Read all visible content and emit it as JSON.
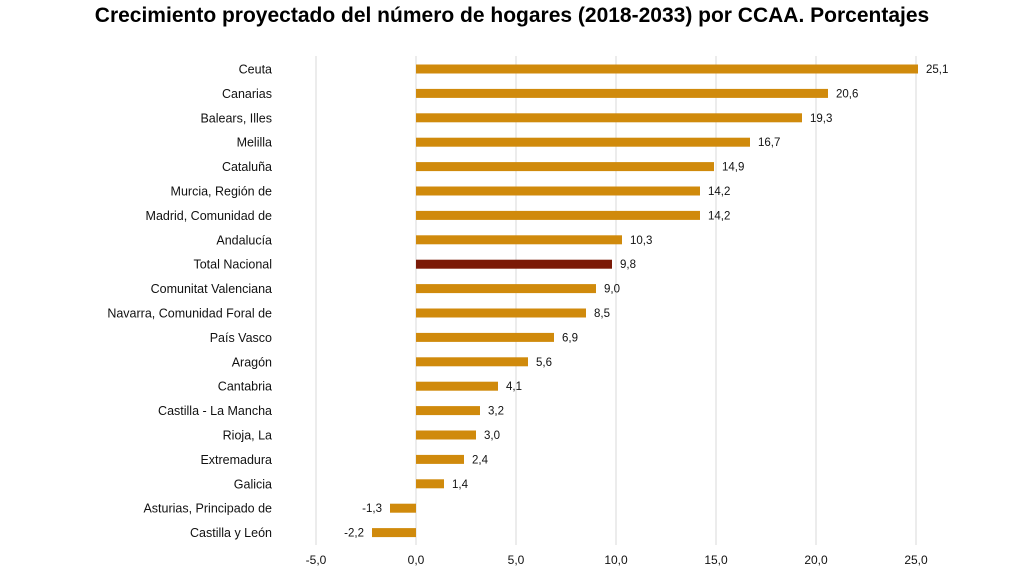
{
  "title": "Crecimiento proyectado del número de hogares (2018-2033) por CCAA. Porcentajes",
  "chart_data": {
    "type": "bar",
    "orientation": "horizontal",
    "title": "Crecimiento proyectado del número de hogares (2018-2033) por CCAA. Porcentajes",
    "categories": [
      "Ceuta",
      "Canarias",
      "Balears, Illes",
      "Melilla",
      "Cataluña",
      "Murcia, Región de",
      "Madrid, Comunidad de",
      "Andalucía",
      "Total Nacional",
      "Comunitat Valenciana",
      "Navarra, Comunidad Foral de",
      "País Vasco",
      "Aragón",
      "Cantabria",
      "Castilla - La Mancha",
      "Rioja, La",
      "Extremadura",
      "Galicia",
      "Asturias, Principado de",
      "Castilla y León"
    ],
    "values": [
      25.1,
      20.6,
      19.3,
      16.7,
      14.9,
      14.2,
      14.2,
      10.3,
      9.8,
      9.0,
      8.5,
      6.9,
      5.6,
      4.1,
      3.2,
      3.0,
      2.4,
      1.4,
      -1.3,
      -2.2
    ],
    "value_labels": [
      "25,1",
      "20,6",
      "19,3",
      "16,7",
      "14,9",
      "14,2",
      "14,2",
      "10,3",
      "9,8",
      "9,0",
      "8,5",
      "6,9",
      "5,6",
      "4,1",
      "3,2",
      "3,0",
      "2,4",
      "1,4",
      "-1,3",
      "-2,2"
    ],
    "xlim": [
      -5,
      25
    ],
    "x_ticks": [
      -5,
      0,
      5,
      10,
      15,
      20,
      25
    ],
    "x_tick_labels": [
      "-5,0",
      "0,0",
      "5,0",
      "10,0",
      "15,0",
      "20,0",
      "25,0"
    ],
    "grid": true,
    "highlight_category": "Total Nacional",
    "colors": {
      "bar": "#D08A0C",
      "highlight": "#7B1A07",
      "grid": "#D9D9D9"
    }
  }
}
